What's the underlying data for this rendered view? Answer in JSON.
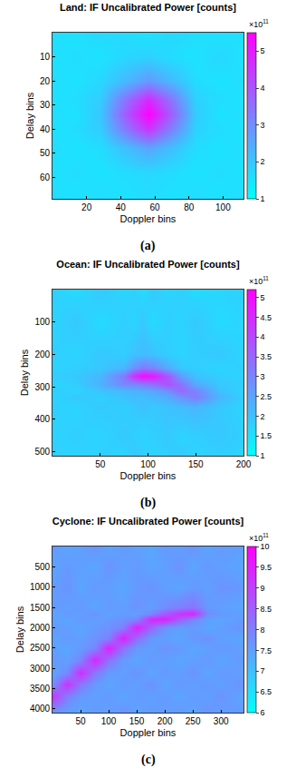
{
  "chart_data": [
    {
      "type": "heatmap",
      "title": "Land: IF Uncalibrated Power [counts]",
      "x_label": "Doppler bins",
      "y_label": "Delay bins",
      "caption": "(a)",
      "x": [
        0,
        14,
        28,
        42,
        56,
        70,
        84,
        98,
        112
      ],
      "y": [
        0,
        10,
        20,
        28,
        34,
        40,
        48,
        58,
        69
      ],
      "cells": [
        [
          160000000000.0,
          150000000000.0,
          170000000000.0,
          160000000000.0,
          150000000000.0,
          170000000000.0,
          160000000000.0,
          150000000000.0,
          160000000000.0
        ],
        [
          150000000000.0,
          160000000000.0,
          150000000000.0,
          170000000000.0,
          180000000000.0,
          160000000000.0,
          150000000000.0,
          170000000000.0,
          150000000000.0
        ],
        [
          160000000000.0,
          150000000000.0,
          170000000000.0,
          220000000000.0,
          280000000000.0,
          220000000000.0,
          160000000000.0,
          150000000000.0,
          160000000000.0
        ],
        [
          150000000000.0,
          160000000000.0,
          190000000000.0,
          340000000000.0,
          480000000000.0,
          340000000000.0,
          180000000000.0,
          160000000000.0,
          150000000000.0
        ],
        [
          160000000000.0,
          150000000000.0,
          200000000000.0,
          380000000000.0,
          550000000000.0,
          380000000000.0,
          190000000000.0,
          150000000000.0,
          160000000000.0
        ],
        [
          150000000000.0,
          160000000000.0,
          190000000000.0,
          330000000000.0,
          460000000000.0,
          320000000000.0,
          180000000000.0,
          160000000000.0,
          150000000000.0
        ],
        [
          160000000000.0,
          150000000000.0,
          160000000000.0,
          210000000000.0,
          260000000000.0,
          210000000000.0,
          160000000000.0,
          150000000000.0,
          160000000000.0
        ],
        [
          150000000000.0,
          160000000000.0,
          150000000000.0,
          160000000000.0,
          170000000000.0,
          160000000000.0,
          150000000000.0,
          160000000000.0,
          150000000000.0
        ],
        [
          160000000000.0,
          150000000000.0,
          160000000000.0,
          150000000000.0,
          160000000000.0,
          150000000000.0,
          160000000000.0,
          150000000000.0,
          160000000000.0
        ]
      ],
      "xlim": [
        0,
        112
      ],
      "ylim": [
        69,
        0
      ],
      "xticks": [
        20,
        40,
        60,
        80,
        100
      ],
      "yticks": [
        10,
        20,
        30,
        40,
        50,
        60
      ],
      "colorbar": {
        "range": [
          100000000000.0,
          550000000000.0
        ],
        "ticks": [
          {
            "value": 100000000000.0,
            "label": "1"
          },
          {
            "value": 200000000000.0,
            "label": "2"
          },
          {
            "value": 300000000000.0,
            "label": "3"
          },
          {
            "value": 400000000000.0,
            "label": "4"
          },
          {
            "value": 500000000000.0,
            "label": "5"
          }
        ],
        "multiplier": "×10",
        "exponent": "11",
        "colors": [
          "#00ffff",
          "#ff00ff"
        ]
      }
    },
    {
      "type": "heatmap",
      "title": "Ocean: IF Uncalibrated Power [counts]",
      "x_label": "Doppler bins",
      "y_label": "Delay bins",
      "caption": "(b)",
      "x": [
        0,
        25,
        50,
        75,
        85,
        95,
        105,
        120,
        135,
        150,
        175,
        200
      ],
      "y": [
        0,
        100,
        200,
        240,
        265,
        290,
        310,
        330,
        360,
        450,
        512
      ],
      "cells": [
        [
          180000000000.0,
          160000000000.0,
          190000000000.0,
          170000000000.0,
          180000000000.0,
          160000000000.0,
          190000000000.0,
          170000000000.0,
          180000000000.0,
          160000000000.0,
          170000000000.0,
          180000000000.0
        ],
        [
          170000000000.0,
          190000000000.0,
          160000000000.0,
          180000000000.0,
          170000000000.0,
          190000000000.0,
          160000000000.0,
          180000000000.0,
          170000000000.0,
          190000000000.0,
          160000000000.0,
          170000000000.0
        ],
        [
          180000000000.0,
          170000000000.0,
          190000000000.0,
          180000000000.0,
          200000000000.0,
          210000000000.0,
          200000000000.0,
          180000000000.0,
          170000000000.0,
          180000000000.0,
          190000000000.0,
          170000000000.0
        ],
        [
          170000000000.0,
          180000000000.0,
          190000000000.0,
          220000000000.0,
          280000000000.0,
          320000000000.0,
          300000000000.0,
          240000000000.0,
          190000000000.0,
          180000000000.0,
          170000000000.0,
          180000000000.0
        ],
        [
          180000000000.0,
          190000000000.0,
          220000000000.0,
          320000000000.0,
          440000000000.0,
          500000000000.0,
          480000000000.0,
          380000000000.0,
          260000000000.0,
          200000000000.0,
          180000000000.0,
          170000000000.0
        ],
        [
          170000000000.0,
          180000000000.0,
          230000000000.0,
          300000000000.0,
          300000000000.0,
          320000000000.0,
          340000000000.0,
          390000000000.0,
          330000000000.0,
          240000000000.0,
          190000000000.0,
          180000000000.0
        ],
        [
          180000000000.0,
          170000000000.0,
          200000000000.0,
          220000000000.0,
          230000000000.0,
          240000000000.0,
          250000000000.0,
          290000000000.0,
          350000000000.0,
          300000000000.0,
          200000000000.0,
          170000000000.0
        ],
        [
          170000000000.0,
          190000000000.0,
          180000000000.0,
          200000000000.0,
          210000000000.0,
          210000000000.0,
          220000000000.0,
          240000000000.0,
          280000000000.0,
          320000000000.0,
          220000000000.0,
          180000000000.0
        ],
        [
          180000000000.0,
          170000000000.0,
          190000000000.0,
          180000000000.0,
          190000000000.0,
          200000000000.0,
          190000000000.0,
          200000000000.0,
          210000000000.0,
          220000000000.0,
          190000000000.0,
          170000000000.0
        ],
        [
          170000000000.0,
          180000000000.0,
          170000000000.0,
          190000000000.0,
          180000000000.0,
          170000000000.0,
          180000000000.0,
          190000000000.0,
          170000000000.0,
          180000000000.0,
          190000000000.0,
          180000000000.0
        ],
        [
          180000000000.0,
          170000000000.0,
          180000000000.0,
          170000000000.0,
          190000000000.0,
          180000000000.0,
          170000000000.0,
          180000000000.0,
          190000000000.0,
          170000000000.0,
          180000000000.0,
          170000000000.0
        ]
      ],
      "xlim": [
        0,
        200
      ],
      "ylim": [
        512,
        0
      ],
      "xticks": [
        50,
        100,
        150,
        200
      ],
      "yticks": [
        100,
        200,
        300,
        400,
        500
      ],
      "colorbar": {
        "range": [
          100000000000.0,
          520000000000.0
        ],
        "ticks": [
          {
            "value": 100000000000.0,
            "label": "1"
          },
          {
            "value": 150000000000.0,
            "label": "1.5"
          },
          {
            "value": 200000000000.0,
            "label": "2"
          },
          {
            "value": 250000000000.0,
            "label": "2.5"
          },
          {
            "value": 300000000000.0,
            "label": "3"
          },
          {
            "value": 350000000000.0,
            "label": "3.5"
          },
          {
            "value": 400000000000.0,
            "label": "4"
          },
          {
            "value": 450000000000.0,
            "label": "4.5"
          },
          {
            "value": 500000000000.0,
            "label": "5"
          }
        ],
        "multiplier": "×10",
        "exponent": "11",
        "colors": [
          "#00ffff",
          "#ff00ff"
        ]
      }
    },
    {
      "type": "heatmap",
      "title": "Cyclone: IF Uncalibrated Power [counts]",
      "x_label": "Doppler bins",
      "y_label": "Delay bins",
      "caption": "(c)",
      "x": [
        0,
        25,
        50,
        75,
        100,
        125,
        150,
        175,
        200,
        225,
        250,
        275,
        300,
        340
      ],
      "y": [
        0,
        500,
        1000,
        1500,
        1650,
        1800,
        2000,
        2250,
        2500,
        2800,
        3100,
        3400,
        3700,
        4096
      ],
      "cells": [
        [
          760000000000.0,
          740000000000.0,
          750000000000.0,
          770000000000.0,
          740000000000.0,
          760000000000.0,
          750000000000.0,
          740000000000.0,
          760000000000.0,
          750000000000.0,
          770000000000.0,
          740000000000.0,
          760000000000.0,
          750000000000.0
        ],
        [
          740000000000.0,
          760000000000.0,
          750000000000.0,
          740000000000.0,
          770000000000.0,
          750000000000.0,
          760000000000.0,
          740000000000.0,
          750000000000.0,
          770000000000.0,
          740000000000.0,
          760000000000.0,
          750000000000.0,
          740000000000.0
        ],
        [
          750000000000.0,
          770000000000.0,
          740000000000.0,
          760000000000.0,
          750000000000.0,
          740000000000.0,
          760000000000.0,
          770000000000.0,
          750000000000.0,
          740000000000.0,
          760000000000.0,
          750000000000.0,
          770000000000.0,
          760000000000.0
        ],
        [
          760000000000.0,
          750000000000.0,
          760000000000.0,
          740000000000.0,
          760000000000.0,
          750000000000.0,
          770000000000.0,
          750000000000.0,
          780000000000.0,
          800000000000.0,
          820000000000.0,
          760000000000.0,
          750000000000.0,
          740000000000.0
        ],
        [
          740000000000.0,
          760000000000.0,
          750000000000.0,
          770000000000.0,
          740000000000.0,
          760000000000.0,
          750000000000.0,
          790000000000.0,
          860000000000.0,
          920000000000.0,
          940000000000.0,
          780000000000.0,
          760000000000.0,
          750000000000.0
        ],
        [
          750000000000.0,
          740000000000.0,
          760000000000.0,
          750000000000.0,
          760000000000.0,
          770000000000.0,
          790000000000.0,
          940000000000.0,
          950000000000.0,
          860000000000.0,
          790000000000.0,
          750000000000.0,
          740000000000.0,
          760000000000.0
        ],
        [
          760000000000.0,
          750000000000.0,
          740000000000.0,
          760000000000.0,
          770000000000.0,
          800000000000.0,
          950000000000.0,
          840000000000.0,
          770000000000.0,
          750000000000.0,
          760000000000.0,
          740000000000.0,
          750000000000.0,
          770000000000.0
        ],
        [
          740000000000.0,
          760000000000.0,
          750000000000.0,
          770000000000.0,
          800000000000.0,
          950000000000.0,
          830000000000.0,
          760000000000.0,
          750000000000.0,
          740000000000.0,
          760000000000.0,
          770000000000.0,
          750000000000.0,
          740000000000.0
        ],
        [
          750000000000.0,
          740000000000.0,
          760000000000.0,
          790000000000.0,
          950000000000.0,
          820000000000.0,
          760000000000.0,
          750000000000.0,
          770000000000.0,
          760000000000.0,
          740000000000.0,
          750000000000.0,
          760000000000.0,
          750000000000.0
        ],
        [
          760000000000.0,
          750000000000.0,
          790000000000.0,
          940000000000.0,
          820000000000.0,
          760000000000.0,
          740000000000.0,
          760000000000.0,
          750000000000.0,
          740000000000.0,
          750000000000.0,
          760000000000.0,
          740000000000.0,
          760000000000.0
        ],
        [
          740000000000.0,
          780000000000.0,
          930000000000.0,
          810000000000.0,
          760000000000.0,
          750000000000.0,
          770000000000.0,
          740000000000.0,
          760000000000.0,
          750000000000.0,
          770000000000.0,
          740000000000.0,
          760000000000.0,
          750000000000.0
        ],
        [
          770000000000.0,
          920000000000.0,
          810000000000.0,
          760000000000.0,
          740000000000.0,
          760000000000.0,
          750000000000.0,
          770000000000.0,
          740000000000.0,
          760000000000.0,
          750000000000.0,
          760000000000.0,
          750000000000.0,
          770000000000.0
        ],
        [
          920000000000.0,
          800000000000.0,
          760000000000.0,
          750000000000.0,
          760000000000.0,
          740000000000.0,
          760000000000.0,
          750000000000.0,
          760000000000.0,
          740000000000.0,
          760000000000.0,
          750000000000.0,
          770000000000.0,
          740000000000.0
        ],
        [
          760000000000.0,
          750000000000.0,
          740000000000.0,
          760000000000.0,
          750000000000.0,
          770000000000.0,
          740000000000.0,
          760000000000.0,
          750000000000.0,
          760000000000.0,
          740000000000.0,
          770000000000.0,
          750000000000.0,
          760000000000.0
        ]
      ],
      "xlim": [
        0,
        340
      ],
      "ylim": [
        4096,
        0
      ],
      "xticks": [
        50,
        100,
        150,
        200,
        250,
        300
      ],
      "yticks": [
        500,
        1000,
        1500,
        2000,
        2500,
        3000,
        3500,
        4000
      ],
      "colorbar": {
        "range": [
          600000000000.0,
          1000000000000.0
        ],
        "ticks": [
          {
            "value": 600000000000.0,
            "label": "6"
          },
          {
            "value": 650000000000.0,
            "label": "6.5"
          },
          {
            "value": 700000000000.0,
            "label": "7"
          },
          {
            "value": 750000000000.0,
            "label": "7.5"
          },
          {
            "value": 800000000000.0,
            "label": "8"
          },
          {
            "value": 850000000000.0,
            "label": "8.5"
          },
          {
            "value": 900000000000.0,
            "label": "9"
          },
          {
            "value": 950000000000.0,
            "label": "9.5"
          },
          {
            "value": 1000000000000.0,
            "label": "10"
          }
        ],
        "multiplier": "×10",
        "exponent": "11",
        "colors": [
          "#00ffff",
          "#ff00ff"
        ]
      }
    }
  ]
}
